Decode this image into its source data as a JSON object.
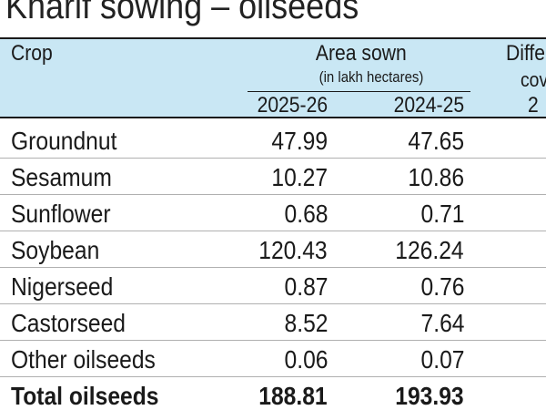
{
  "title": "Kharif sowing – oilseeds",
  "header": {
    "crop": "Crop",
    "area_sown": "Area sown",
    "unit": "(in lakh hectares)",
    "year1": "2025-26",
    "year2": "2024-25",
    "diff_line1": "Diffe",
    "diff_line2": "cov",
    "diff_line3": "2"
  },
  "rows": [
    {
      "crop": "Groundnut",
      "v1": "47.99",
      "v2": "47.65"
    },
    {
      "crop": "Sesamum",
      "v1": "10.27",
      "v2": "10.86"
    },
    {
      "crop": "Sunflower",
      "v1": "0.68",
      "v2": "0.71"
    },
    {
      "crop": "Soybean",
      "v1": "120.43",
      "v2": "126.24"
    },
    {
      "crop": "Nigerseed",
      "v1": "0.87",
      "v2": "0.76"
    },
    {
      "crop": "Castorseed",
      "v1": "8.52",
      "v2": "7.64"
    },
    {
      "crop": "Other oilseeds",
      "v1": "0.06",
      "v2": "0.07"
    }
  ],
  "total": {
    "crop": "Total oilseeds",
    "v1": "188.81",
    "v2": "193.93"
  },
  "colors": {
    "header_bg": "#c9e7f4",
    "text": "#1a1a1a"
  }
}
